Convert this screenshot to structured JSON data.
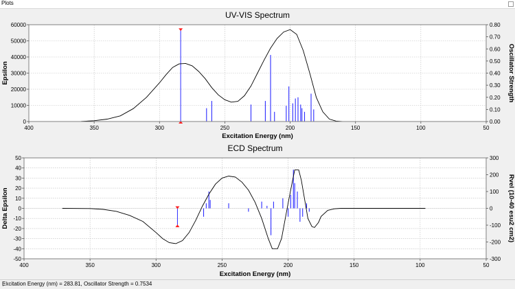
{
  "window": {
    "title": "Plots"
  },
  "status": {
    "text": "Excitation Energy (nm) = 283.81, Oscillator Strength = 0.7534"
  },
  "chart_data": [
    {
      "type": "line",
      "title": "UV-VIS Spectrum",
      "xlabel": "Excitation Energy (nm)",
      "ylabel": "Epsilon",
      "y2label": "Oscillator Strength",
      "xlim": [
        400,
        50
      ],
      "ylim": [
        0,
        60000
      ],
      "y2lim": [
        0,
        0.8
      ],
      "xticks": [
        400,
        350,
        300,
        250,
        200,
        150,
        100,
        50
      ],
      "yticks": [
        0,
        10000,
        20000,
        30000,
        40000,
        50000,
        60000
      ],
      "y2ticks": [
        0.0,
        0.1,
        0.2,
        0.3,
        0.4,
        0.5,
        0.6,
        0.7,
        0.8
      ],
      "series": [
        {
          "x": [
            371,
            360,
            350,
            340,
            330,
            320,
            310,
            300,
            295,
            290,
            285,
            280,
            275,
            270,
            265,
            260,
            255,
            250,
            245,
            240,
            235,
            230,
            225,
            220,
            215,
            210,
            205,
            200,
            195,
            190,
            185,
            180,
            175,
            170,
            165,
            160,
            150,
            140,
            120,
            96
          ],
          "y": [
            0,
            80,
            500,
            1500,
            3500,
            8000,
            15000,
            24000,
            29000,
            33500,
            35700,
            36000,
            34500,
            31000,
            26500,
            21000,
            16500,
            13500,
            12000,
            12500,
            16000,
            22000,
            30000,
            38000,
            45500,
            51500,
            55500,
            57000,
            54000,
            44000,
            30000,
            15000,
            6000,
            1500,
            300,
            50,
            0,
            0,
            0,
            0
          ]
        }
      ],
      "sticks": [
        {
          "x": 283.8,
          "f": 0.7534,
          "highlight": true
        },
        {
          "x": 264,
          "f": 0.11
        },
        {
          "x": 260,
          "f": 0.17
        },
        {
          "x": 230,
          "f": 0.14
        },
        {
          "x": 219,
          "f": 0.17
        },
        {
          "x": 215,
          "f": 0.55
        },
        {
          "x": 212,
          "f": 0.08
        },
        {
          "x": 203,
          "f": 0.13
        },
        {
          "x": 201,
          "f": 0.29
        },
        {
          "x": 198,
          "f": 0.15
        },
        {
          "x": 196,
          "f": 0.19
        },
        {
          "x": 194,
          "f": 0.2
        },
        {
          "x": 192,
          "f": 0.14
        },
        {
          "x": 191,
          "f": 0.11
        },
        {
          "x": 189,
          "f": 0.08
        },
        {
          "x": 184,
          "f": 0.23
        },
        {
          "x": 182,
          "f": 0.1
        }
      ]
    },
    {
      "type": "line",
      "title": "ECD Spectrum",
      "xlabel": "Excitation Energy (nm)",
      "ylabel": "Delta Epsilon",
      "y2label": "Rvel (10-40 esu2 cm2)",
      "xlim": [
        400,
        50
      ],
      "ylim": [
        -50,
        50
      ],
      "y2lim": [
        -300,
        300
      ],
      "xticks": [
        400,
        350,
        300,
        250,
        200,
        150,
        100,
        50
      ],
      "yticks": [
        -50,
        -40,
        -30,
        -20,
        -10,
        0,
        10,
        20,
        30,
        40,
        50
      ],
      "y2ticks": [
        -300,
        -200,
        -100,
        0,
        100,
        200,
        300
      ],
      "series": [
        {
          "x": [
            371,
            350,
            340,
            330,
            320,
            310,
            300,
            295,
            290,
            285,
            280,
            275,
            270,
            265,
            260,
            255,
            250,
            245,
            240,
            235,
            230,
            225,
            220,
            215,
            212,
            208,
            205,
            200,
            197,
            195,
            192,
            190,
            187,
            185,
            182,
            180,
            177,
            175,
            170,
            165,
            160,
            140,
            120,
            96
          ],
          "y": [
            0,
            -0.2,
            -1,
            -3,
            -7,
            -13,
            -24,
            -30,
            -34,
            -35,
            -32,
            -24,
            -12,
            2,
            14,
            24,
            30,
            32,
            31,
            26,
            18,
            6,
            -10,
            -30,
            -40,
            -40,
            -30,
            5,
            25,
            38,
            38,
            28,
            5,
            -10,
            -18,
            -19,
            -14,
            -8,
            -2,
            -0.5,
            0,
            0,
            0,
            0
          ]
        }
      ],
      "sticks": [
        {
          "x": 283.8,
          "r": -100,
          "highlight": true
        },
        {
          "x": 264,
          "r": -50
        },
        {
          "x": 262,
          "r": 30
        },
        {
          "x": 260,
          "r": 100
        },
        {
          "x": 259,
          "r": 50
        },
        {
          "x": 245,
          "r": 30
        },
        {
          "x": 230,
          "r": -20
        },
        {
          "x": 220,
          "r": 40
        },
        {
          "x": 216,
          "r": 15
        },
        {
          "x": 213,
          "r": -160
        },
        {
          "x": 211,
          "r": 40
        },
        {
          "x": 204,
          "r": 60
        },
        {
          "x": 200,
          "r": -50
        },
        {
          "x": 198,
          "r": 80
        },
        {
          "x": 196,
          "r": 230
        },
        {
          "x": 195,
          "r": 150
        },
        {
          "x": 193,
          "r": 100
        },
        {
          "x": 191,
          "r": -80
        },
        {
          "x": 189,
          "r": -50
        },
        {
          "x": 186,
          "r": 30
        },
        {
          "x": 184,
          "r": -20
        }
      ]
    }
  ]
}
